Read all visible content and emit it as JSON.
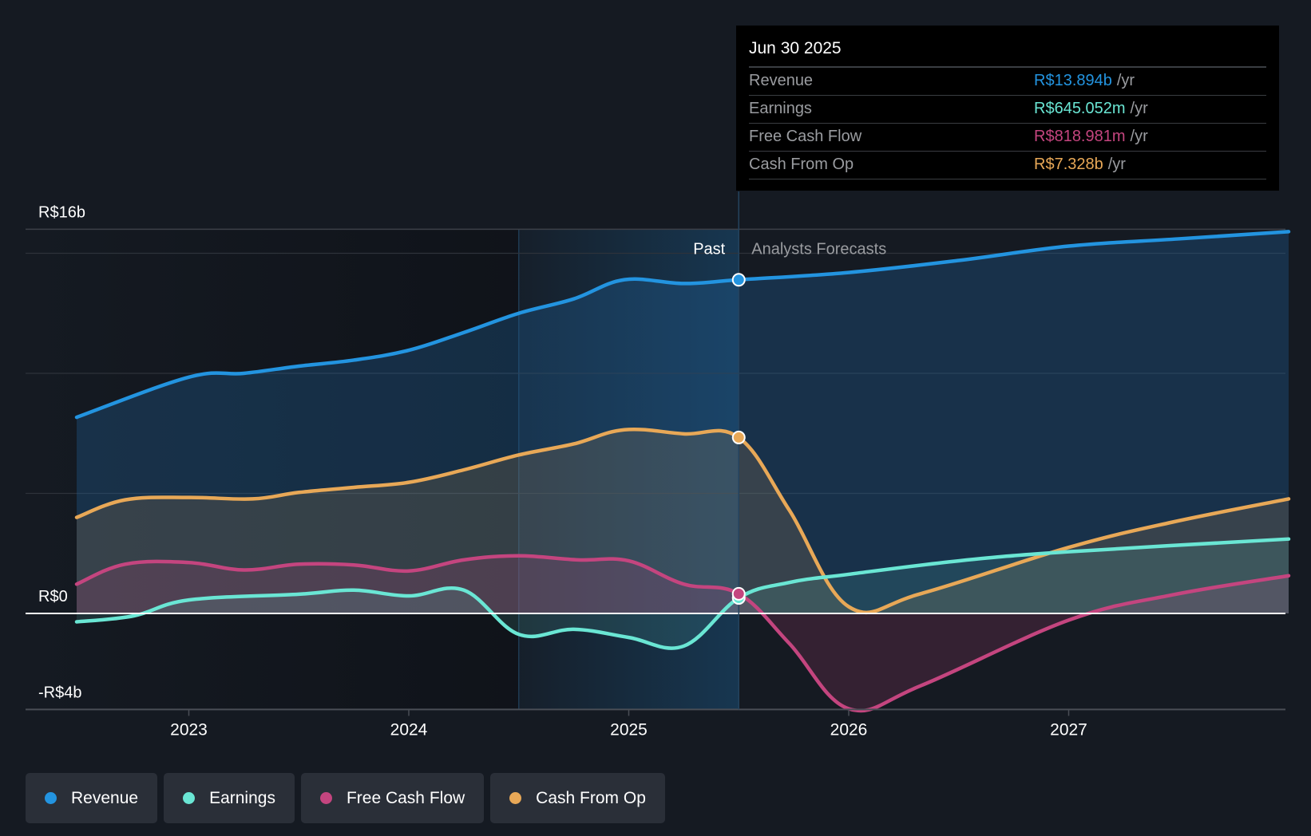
{
  "chart_data": {
    "type": "area",
    "title": "",
    "xlabel": "",
    "ylabel": "",
    "currency_prefix": "R$",
    "ylim": [
      -4,
      16
    ],
    "y_ticks": [
      {
        "value": 16,
        "label": "R$16b"
      },
      {
        "value": 0,
        "label": "R$0"
      },
      {
        "value": -4,
        "label": "-R$4b"
      }
    ],
    "gridlines": [
      15,
      10,
      5
    ],
    "x_ticks": [
      {
        "value": 2023,
        "label": "2023"
      },
      {
        "value": 2024,
        "label": "2024"
      },
      {
        "value": 2025,
        "label": "2025"
      },
      {
        "value": 2026,
        "label": "2026"
      },
      {
        "value": 2027,
        "label": "2027"
      }
    ],
    "xlim": [
      2022.25,
      2028.0
    ],
    "past_region": [
      2024.5,
      2025.5
    ],
    "divider_x": 2025.5,
    "region_labels": {
      "past": "Past",
      "forecast": "Analysts Forecasts"
    },
    "series": [
      {
        "name": "Revenue",
        "color": "#2394e0",
        "x": [
          2022.49,
          2023.0,
          2023.25,
          2023.5,
          2023.75,
          2024.0,
          2024.25,
          2024.5,
          2024.75,
          2024.98,
          2025.25,
          2025.5,
          2026.0,
          2026.5,
          2027.0,
          2027.5,
          2028.0
        ],
        "y": [
          8.17,
          9.84,
          10.0,
          10.3,
          10.55,
          10.96,
          11.7,
          12.5,
          13.1,
          13.9,
          13.74,
          13.894,
          14.2,
          14.7,
          15.3,
          15.6,
          15.9
        ]
      },
      {
        "name": "Earnings",
        "color": "#6ae6d4",
        "x": [
          2022.49,
          2022.75,
          2023.0,
          2023.5,
          2023.75,
          2024.0,
          2024.25,
          2024.5,
          2024.75,
          2025.0,
          2025.25,
          2025.5,
          2025.73,
          2026.0,
          2026.5,
          2027.0,
          2028.0
        ],
        "y": [
          -0.35,
          -0.1,
          0.56,
          0.8,
          0.97,
          0.73,
          0.97,
          -0.87,
          -0.66,
          -1.0,
          -1.36,
          0.645,
          1.29,
          1.63,
          2.19,
          2.57,
          3.1
        ]
      },
      {
        "name": "Free Cash Flow",
        "color": "#c4457f",
        "x": [
          2022.49,
          2022.71,
          2023.0,
          2023.25,
          2023.5,
          2023.75,
          2024.0,
          2024.25,
          2024.5,
          2024.77,
          2025.0,
          2025.25,
          2025.5,
          2025.73,
          2026.0,
          2026.33,
          2027.0,
          2027.47,
          2028.0
        ],
        "y": [
          1.22,
          2.05,
          2.12,
          1.81,
          2.05,
          2.02,
          1.77,
          2.23,
          2.4,
          2.23,
          2.19,
          1.22,
          0.819,
          -1.25,
          -3.97,
          -3.0,
          -0.28,
          0.77,
          1.57
        ]
      },
      {
        "name": "Cash From Op",
        "color": "#e8a857",
        "x": [
          2022.49,
          2022.71,
          2023.0,
          2023.29,
          2023.5,
          2023.75,
          2024.0,
          2024.25,
          2024.5,
          2024.75,
          2024.98,
          2025.25,
          2025.5,
          2025.73,
          2026.0,
          2026.33,
          2027.0,
          2027.47,
          2028.0
        ],
        "y": [
          4.0,
          4.73,
          4.83,
          4.77,
          5.04,
          5.25,
          5.46,
          5.98,
          6.6,
          7.06,
          7.65,
          7.48,
          7.328,
          4.3,
          0.28,
          0.83,
          2.75,
          3.8,
          4.77
        ]
      }
    ]
  },
  "tooltip": {
    "date": "Jun 30 2025",
    "rows": [
      {
        "label": "Revenue",
        "value": "R$13.894b",
        "unit": "/yr",
        "color": "#2394e0"
      },
      {
        "label": "Earnings",
        "value": "R$645.052m",
        "unit": "/yr",
        "color": "#6ae6d4"
      },
      {
        "label": "Free Cash Flow",
        "value": "R$818.981m",
        "unit": "/yr",
        "color": "#c4457f"
      },
      {
        "label": "Cash From Op",
        "value": "R$7.328b",
        "unit": "/yr",
        "color": "#e8a857"
      }
    ]
  },
  "legend": [
    {
      "label": "Revenue",
      "color": "#2394e0"
    },
    {
      "label": "Earnings",
      "color": "#6ae6d4"
    },
    {
      "label": "Free Cash Flow",
      "color": "#c4457f"
    },
    {
      "label": "Cash From Op",
      "color": "#e8a857"
    }
  ]
}
